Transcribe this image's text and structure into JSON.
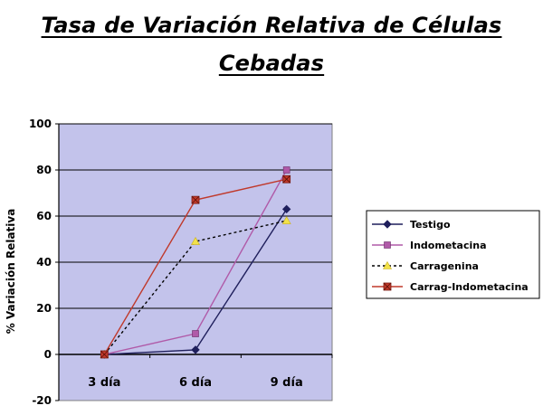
{
  "chart_data": {
    "type": "line",
    "title_lines": [
      "Tasa de Variación Relativa de Células",
      "Cebadas"
    ],
    "xlabel": "",
    "ylabel": "% Variación Relativa",
    "categories": [
      "3 día",
      "6 día",
      "9 día"
    ],
    "ylim": [
      -20,
      100
    ],
    "yticks": [
      -20,
      0,
      20,
      40,
      60,
      80,
      100
    ],
    "grid": true,
    "legend_position": "right",
    "plot_background": "#c3c3eb",
    "series": [
      {
        "name": "Testigo",
        "values": [
          0,
          2,
          63
        ],
        "color": "#1f1f5c",
        "marker": "diamond",
        "line": "solid"
      },
      {
        "name": "Indometacina",
        "values": [
          0,
          9,
          80
        ],
        "color": "#b05aa8",
        "marker": "square",
        "line": "solid"
      },
      {
        "name": "Carragenina",
        "values": [
          0,
          49,
          58
        ],
        "color": "#f2e24a",
        "marker": "triangle",
        "line": "dashed",
        "line_color": "#000000"
      },
      {
        "name": "Carrag-Indometacina",
        "values": [
          0,
          67,
          76
        ],
        "color": "#c0392b",
        "marker": "square-x",
        "line": "solid"
      }
    ]
  }
}
